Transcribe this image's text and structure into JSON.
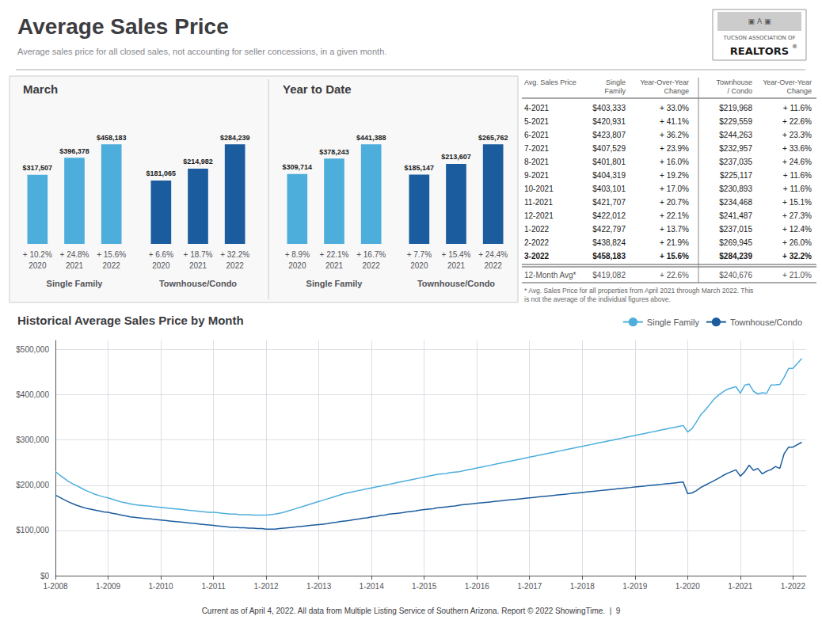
{
  "title": "Average Sales Price",
  "subtitle": "Average sales price for all closed sales, not accounting for seller concessions, in a given month.",
  "logo": [
    "▣ A ▣",
    "TUCSON ASSOCIATION OF",
    "REALTORS",
    "®"
  ],
  "footer": "Current as of April 4, 2022. All data from Multiple Listing Service of Southern Arizona. Report © 2022 ShowingTime.  |  9",
  "chart_data": [
    {
      "type": "bar",
      "title": "March",
      "xlabel": "Single Family",
      "categories": [
        "2020",
        "2021",
        "2022"
      ],
      "values": [
        317507,
        396378,
        458183
      ],
      "value_labels": [
        "$317,507",
        "$396,378",
        "$458,183"
      ],
      "changes": [
        10.2,
        24.8,
        15.6
      ],
      "change_labels": [
        "+ 10.2%",
        "+ 24.8%",
        "+ 15.6%"
      ],
      "color": "#4DAEDC",
      "ylim": [
        0,
        604801.56
      ],
      "data_labels": true,
      "tick_labels": "x",
      "grid": false
    },
    {
      "type": "bar",
      "xlabel": "Townhouse/Condo",
      "categories": [
        "2020",
        "2021",
        "2022"
      ],
      "values": [
        181065,
        214982,
        284239
      ],
      "value_labels": [
        "$181,065",
        "$214,982",
        "$284,239"
      ],
      "changes": [
        6.6,
        18.7,
        32.2
      ],
      "change_labels": [
        "+ 6.6%",
        "+ 18.7%",
        "+ 32.2%"
      ],
      "color": "#1B5C9E",
      "ylim": [
        0,
        375195.48
      ],
      "data_labels": true,
      "tick_labels": "x",
      "grid": false
    },
    {
      "type": "bar",
      "title": "Year to Date",
      "xlabel": "Single Family",
      "categories": [
        "2020",
        "2021",
        "2022"
      ],
      "values": [
        309714,
        378243,
        441388
      ],
      "value_labels": [
        "$309,714",
        "$378,243",
        "$441,388"
      ],
      "changes": [
        8.9,
        22.1,
        16.7
      ],
      "change_labels": [
        "+ 8.9%",
        "+ 22.1%",
        "+ 16.7%"
      ],
      "color": "#4DAEDC",
      "ylim": [
        0,
        582632.16
      ],
      "data_labels": true,
      "tick_labels": "x",
      "grid": false
    },
    {
      "type": "bar",
      "xlabel": "Townhouse/Condo",
      "categories": [
        "2020",
        "2021",
        "2022"
      ],
      "values": [
        185147,
        213607,
        265762
      ],
      "value_labels": [
        "$185,147",
        "$213,607",
        "$265,762"
      ],
      "changes": [
        7.7,
        15.4,
        24.4
      ],
      "change_labels": [
        "+ 7.7%",
        "+ 15.4%",
        "+ 24.4%"
      ],
      "color": "#1B5C9E",
      "ylim": [
        0,
        350805.84
      ],
      "data_labels": true,
      "tick_labels": "x",
      "grid": false
    },
    {
      "type": "table",
      "columns": [
        "Avg. Sales Price",
        "Single\nFamily",
        "Year-Over-Year\nChange",
        "Townhouse\n/ Condo",
        "Year-Over-Year\nChange"
      ],
      "rows": [
        [
          "4-2021",
          "$403,333",
          "+ 33.0%",
          "$219,968",
          "+ 11.6%"
        ],
        [
          "5-2021",
          "$420,931",
          "+ 41.1%",
          "$229,559",
          "+ 22.6%"
        ],
        [
          "6-2021",
          "$423,807",
          "+ 36.2%",
          "$244,263",
          "+ 23.3%"
        ],
        [
          "7-2021",
          "$407,529",
          "+ 23.9%",
          "$232,957",
          "+ 33.6%"
        ],
        [
          "8-2021",
          "$401,801",
          "+ 16.0%",
          "$237,035",
          "+ 24.6%"
        ],
        [
          "9-2021",
          "$404,319",
          "+ 19.2%",
          "$225,117",
          "+ 11.6%"
        ],
        [
          "10-2021",
          "$403,101",
          "+ 17.0%",
          "$230,893",
          "+ 11.6%"
        ],
        [
          "11-2021",
          "$421,707",
          "+ 20.7%",
          "$234,468",
          "+ 15.1%"
        ],
        [
          "12-2021",
          "$422,012",
          "+ 22.1%",
          "$241,487",
          "+ 27.3%"
        ],
        [
          "1-2022",
          "$422,797",
          "+ 13.7%",
          "$237,015",
          "+ 12.4%"
        ],
        [
          "2-2022",
          "$438,824",
          "+ 21.9%",
          "$269,945",
          "+ 26.0%"
        ],
        [
          "3-2022",
          "$458,183",
          "+ 15.6%",
          "$284,239",
          "+ 32.2%"
        ]
      ],
      "summary_row": [
        "12-Month Avg*",
        "$419,082",
        "+ 22.6%",
        "$240,676",
        "+ 21.0%"
      ],
      "footnote": "* Avg. Sales Price for all properties from April 2021 through March 2022. This\nis not the average of the individual figures above."
    },
    {
      "type": "line",
      "title": "Historical Average Sales Price by Month",
      "x": [
        2008.0,
        2008.083,
        2008.167,
        2008.25,
        2008.333,
        2008.417,
        2008.5,
        2008.583,
        2008.667,
        2008.75,
        2008.833,
        2008.917,
        2009.0,
        2009.083,
        2009.167,
        2009.25,
        2009.333,
        2009.417,
        2009.5,
        2009.583,
        2009.667,
        2009.75,
        2009.833,
        2009.917,
        2010.0,
        2010.083,
        2010.167,
        2010.25,
        2010.333,
        2010.417,
        2010.5,
        2010.583,
        2010.667,
        2010.75,
        2010.833,
        2010.917,
        2011.0,
        2011.083,
        2011.167,
        2011.25,
        2011.333,
        2011.417,
        2011.5,
        2011.583,
        2011.667,
        2011.75,
        2011.833,
        2011.917,
        2012.0,
        2012.083,
        2012.167,
        2012.25,
        2012.333,
        2012.417,
        2012.5,
        2012.583,
        2012.667,
        2012.75,
        2012.833,
        2012.917,
        2013.0,
        2013.083,
        2013.167,
        2013.25,
        2013.333,
        2013.417,
        2013.5,
        2013.583,
        2013.667,
        2013.75,
        2013.833,
        2013.917,
        2014.0,
        2014.083,
        2014.167,
        2014.25,
        2014.333,
        2014.417,
        2014.5,
        2014.583,
        2014.667,
        2014.75,
        2014.833,
        2014.917,
        2015.0,
        2015.083,
        2015.167,
        2015.25,
        2015.333,
        2015.417,
        2015.5,
        2015.583,
        2015.667,
        2015.75,
        2015.833,
        2015.917,
        2016.0,
        2016.083,
        2016.167,
        2016.25,
        2016.333,
        2016.417,
        2016.5,
        2016.583,
        2016.667,
        2016.75,
        2016.833,
        2016.917,
        2017.0,
        2017.083,
        2017.167,
        2017.25,
        2017.333,
        2017.417,
        2017.5,
        2017.583,
        2017.667,
        2017.75,
        2017.833,
        2017.917,
        2018.0,
        2018.083,
        2018.167,
        2018.25,
        2018.333,
        2018.417,
        2018.5,
        2018.583,
        2018.667,
        2018.75,
        2018.833,
        2018.917,
        2019.0,
        2019.083,
        2019.167,
        2019.25,
        2019.333,
        2019.417,
        2019.5,
        2019.583,
        2019.667,
        2019.75,
        2019.833,
        2019.917,
        2020.0,
        2020.083,
        2020.167,
        2020.25,
        2020.333,
        2020.417,
        2020.5,
        2020.583,
        2020.667,
        2020.75,
        2020.833,
        2020.917,
        2021.0,
        2021.083,
        2021.167,
        2021.25,
        2021.333,
        2021.417,
        2021.5,
        2021.583,
        2021.667,
        2021.75,
        2021.833,
        2021.917,
        2022.0,
        2022.167
      ],
      "series": [
        {
          "name": "Single Family",
          "color": "#4DAEDC",
          "values": [
            230000,
            222000,
            215000,
            208000,
            203000,
            198000,
            193000,
            188000,
            184000,
            180000,
            177000,
            174000,
            172000,
            169000,
            166000,
            163000,
            161000,
            159000,
            157000,
            156000,
            155000,
            154000,
            153000,
            152000,
            151000,
            150000,
            149000,
            148000,
            147000,
            146000,
            145000,
            144000,
            143000,
            142000,
            141000,
            140000,
            140000,
            139000,
            138000,
            137000,
            136000,
            136000,
            135000,
            135000,
            135000,
            134000,
            134000,
            134000,
            134000,
            135000,
            136000,
            138000,
            140000,
            143000,
            146000,
            149000,
            152000,
            155000,
            158000,
            161000,
            164000,
            167000,
            170000,
            173000,
            176000,
            179000,
            182000,
            184000,
            186000,
            188000,
            190000,
            192000,
            194000,
            196000,
            198000,
            200000,
            202000,
            204000,
            206000,
            208000,
            210000,
            212000,
            214000,
            216000,
            218000,
            220000,
            222000,
            224000,
            225000,
            226000,
            228000,
            229000,
            230000,
            232000,
            234000,
            236000,
            238000,
            240000,
            242000,
            244000,
            246000,
            248000,
            250000,
            252000,
            254000,
            256000,
            258000,
            260000,
            262000,
            264000,
            266000,
            268000,
            270000,
            272000,
            274000,
            276000,
            278000,
            280000,
            282000,
            284000,
            286000,
            288000,
            290000,
            292000,
            294000,
            296000,
            298000,
            300000,
            302000,
            304000,
            306000,
            308000,
            310000,
            312000,
            314000,
            316000,
            318000,
            320000,
            322000,
            324000,
            326000,
            328000,
            330000,
            332000,
            317507,
            325000,
            340000,
            356000,
            366000,
            378000,
            390000,
            399000,
            406000,
            412000,
            415000,
            418000,
            403333,
            420931,
            423807,
            407529,
            401801,
            404319,
            403101,
            421707,
            422012,
            422797,
            438824,
            458183,
            458183,
            480000
          ]
        },
        {
          "name": "Townhouse/Condo",
          "color": "#1B5C9E",
          "values": [
            178000,
            173000,
            168000,
            163000,
            159000,
            155000,
            152000,
            149000,
            147000,
            145000,
            143000,
            141000,
            140000,
            138000,
            136000,
            134000,
            132000,
            130000,
            129000,
            128000,
            127000,
            126000,
            125000,
            124000,
            123000,
            122000,
            121000,
            120000,
            119000,
            118000,
            117000,
            116000,
            115000,
            114000,
            113000,
            112000,
            111000,
            110000,
            109000,
            108000,
            107000,
            107000,
            106000,
            106000,
            105000,
            105000,
            104000,
            104000,
            103000,
            103000,
            103000,
            104000,
            105000,
            106000,
            107000,
            108000,
            109000,
            110000,
            111000,
            112000,
            113000,
            114000,
            115000,
            117000,
            118000,
            120000,
            121000,
            122000,
            124000,
            125000,
            127000,
            128000,
            130000,
            131000,
            133000,
            134000,
            136000,
            137000,
            138000,
            139000,
            141000,
            142000,
            143000,
            145000,
            146000,
            147000,
            148000,
            150000,
            151000,
            152000,
            153000,
            154000,
            156000,
            157000,
            158000,
            159000,
            160000,
            161000,
            162000,
            163000,
            164000,
            165000,
            166000,
            167000,
            168000,
            169000,
            170000,
            171000,
            172000,
            173000,
            174000,
            175000,
            176000,
            177000,
            178000,
            179000,
            180000,
            181000,
            182000,
            183000,
            184000,
            185000,
            186000,
            187000,
            188000,
            189000,
            190000,
            191000,
            192000,
            193000,
            194000,
            195000,
            196000,
            197000,
            198000,
            199000,
            200000,
            201000,
            202000,
            203000,
            204000,
            205000,
            206000,
            207000,
            181065,
            183000,
            188000,
            195000,
            200000,
            205000,
            210000,
            215000,
            221000,
            226000,
            230000,
            234000,
            219968,
            229559,
            244263,
            232957,
            237035,
            225117,
            230893,
            234468,
            241487,
            237015,
            269945,
            284239,
            284239,
            295000
          ]
        }
      ],
      "xlim": [
        2008,
        2022.25
      ],
      "xticks": [
        {
          "value": 2008,
          "label": "1-2008"
        },
        {
          "value": 2009,
          "label": "1-2009"
        },
        {
          "value": 2010,
          "label": "1-2010"
        },
        {
          "value": 2011,
          "label": "1-2011"
        },
        {
          "value": 2012,
          "label": "1-2012"
        },
        {
          "value": 2013,
          "label": "1-2013"
        },
        {
          "value": 2014,
          "label": "1-2014"
        },
        {
          "value": 2015,
          "label": "1-2015"
        },
        {
          "value": 2016,
          "label": "1-2016"
        },
        {
          "value": 2017,
          "label": "1-2017"
        },
        {
          "value": 2018,
          "label": "1-2018"
        },
        {
          "value": 2019,
          "label": "1-2019"
        },
        {
          "value": 2020,
          "label": "1-2020"
        },
        {
          "value": 2021,
          "label": "1-2021"
        },
        {
          "value": 2022,
          "label": "1-2022"
        }
      ],
      "ylim": [
        0,
        520000
      ],
      "yticks": [
        {
          "value": 0,
          "label": "$0"
        },
        {
          "value": 100000,
          "label": "$100,000"
        },
        {
          "value": 200000,
          "label": "$200,000"
        },
        {
          "value": 300000,
          "label": "$300,000"
        },
        {
          "value": 400000,
          "label": "$400,000"
        },
        {
          "value": 500000,
          "label": "$500,000"
        }
      ],
      "grid": true,
      "legend": "upper right"
    }
  ]
}
